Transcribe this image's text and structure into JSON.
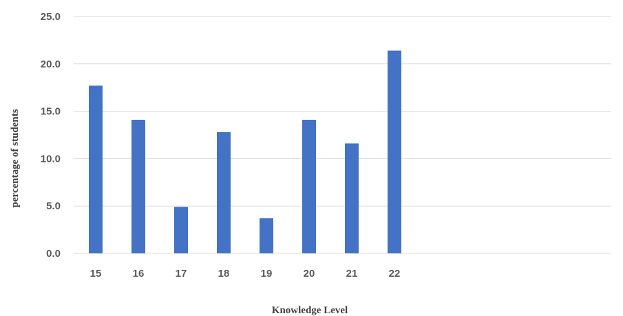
{
  "chart_data": {
    "type": "bar",
    "categories": [
      "15",
      "16",
      "17",
      "18",
      "19",
      "20",
      "21",
      "22"
    ],
    "values": [
      17.7,
      14.1,
      4.9,
      12.8,
      3.7,
      14.1,
      11.6,
      21.4
    ],
    "y_ticks": [
      "0.0",
      "5.0",
      "10.0",
      "15.0",
      "20.0",
      "25.0"
    ],
    "ylim": [
      0,
      25
    ],
    "xlabel": "Knowledge Level",
    "ylabel": "percentage of students",
    "grid": true,
    "legend": "none",
    "colors": {
      "bar": "#4472C4",
      "grid": "#D9D9D9"
    }
  }
}
